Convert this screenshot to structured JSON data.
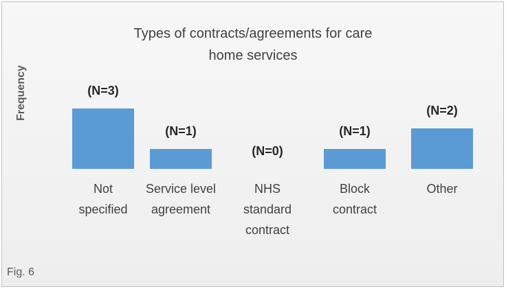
{
  "chart_data": {
    "type": "bar",
    "title": "Types of contracts/agreements for care home services",
    "y_label": "Frequency",
    "annotation": "Fig. 6",
    "categories": [
      "Not specified",
      "Service level agreement",
      "NHS standard contract",
      "Block contract",
      "Other"
    ],
    "values": [
      3,
      1,
      0,
      1,
      2
    ],
    "value_labels": [
      "(N=3)",
      "(N=1)",
      "(N=0)",
      "(N=1)",
      "(N=2)"
    ],
    "color": "#5b9bd5"
  }
}
